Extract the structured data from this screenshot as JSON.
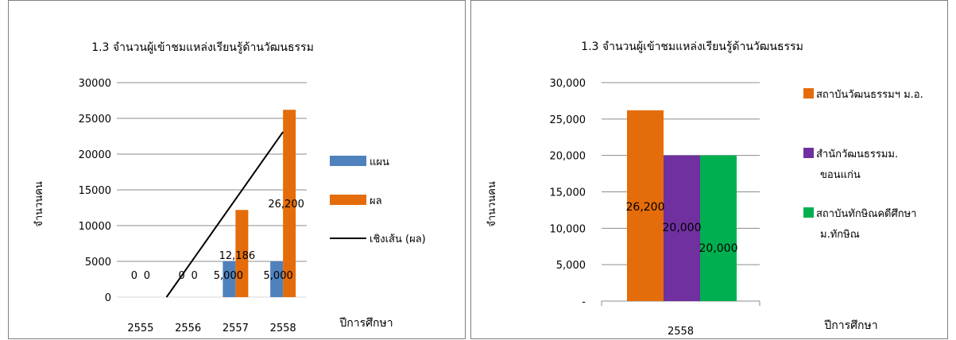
{
  "chart_data": [
    {
      "type": "bar",
      "title": "1.3 จำนวนผู้เข้าชมแหล่งเรียนรู้ด้านวัฒนธรรม",
      "xlabel": "ปีการศึกษา",
      "ylabel": "จำนวนคน",
      "ylim": [
        0,
        30000
      ],
      "yticks": [
        "0",
        "5000",
        "10000",
        "15000",
        "20000",
        "25000",
        "30000"
      ],
      "categories": [
        "2555",
        "2556",
        "2557",
        "2558"
      ],
      "series": [
        {
          "name": "แผน",
          "values": [
            0,
            0,
            5000,
            5000
          ],
          "labels": [
            "0",
            "0",
            "5,000",
            "5,000"
          ],
          "color": "#4f81bd"
        },
        {
          "name": "ผล",
          "values": [
            0,
            0,
            12186,
            26200
          ],
          "labels": [
            "0",
            "0",
            "12,186",
            "26,200"
          ],
          "color": "#e46c0a"
        }
      ],
      "trendline": {
        "name": "เชิงเส้น (ผล)",
        "color": "#000000",
        "values": [
          -5155,
          4159,
          13473,
          23100
        ]
      },
      "grid": true,
      "legend_position": "right"
    },
    {
      "type": "bar",
      "title": "1.3 จำนวนผู้เข้าชมแหล่งเรียนรู้ด้านวัฒนธรรม",
      "xlabel": "ปีการศึกษา",
      "ylabel": "จำนวนคน",
      "ylim": [
        0,
        30000
      ],
      "yticks": [
        "-",
        "5,000",
        "10,000",
        "15,000",
        "20,000",
        "25,000",
        "30,000"
      ],
      "categories": [
        "2558"
      ],
      "series": [
        {
          "name": "สถาบันวัฒนธรรมฯ ม.อ.",
          "values": [
            26200
          ],
          "labels": [
            "26,200"
          ],
          "color": "#e46c0a"
        },
        {
          "name": "สำนักวัฒนธรรมม. ขอนแก่น",
          "legend_lines": [
            "สำนักวัฒนธรรมม.",
            "ขอนแก่น"
          ],
          "values": [
            20000
          ],
          "labels": [
            "20,000"
          ],
          "color": "#7030a0"
        },
        {
          "name": "สถาบันทักษิณคดีศึกษา ม.ทักษิณ",
          "legend_lines": [
            "สถาบันทักษิณคดีศึกษา",
            "ม.ทักษิณ"
          ],
          "values": [
            20000
          ],
          "labels": [
            "20,000"
          ],
          "color": "#00b050"
        }
      ],
      "grid": true,
      "legend_position": "right"
    }
  ]
}
